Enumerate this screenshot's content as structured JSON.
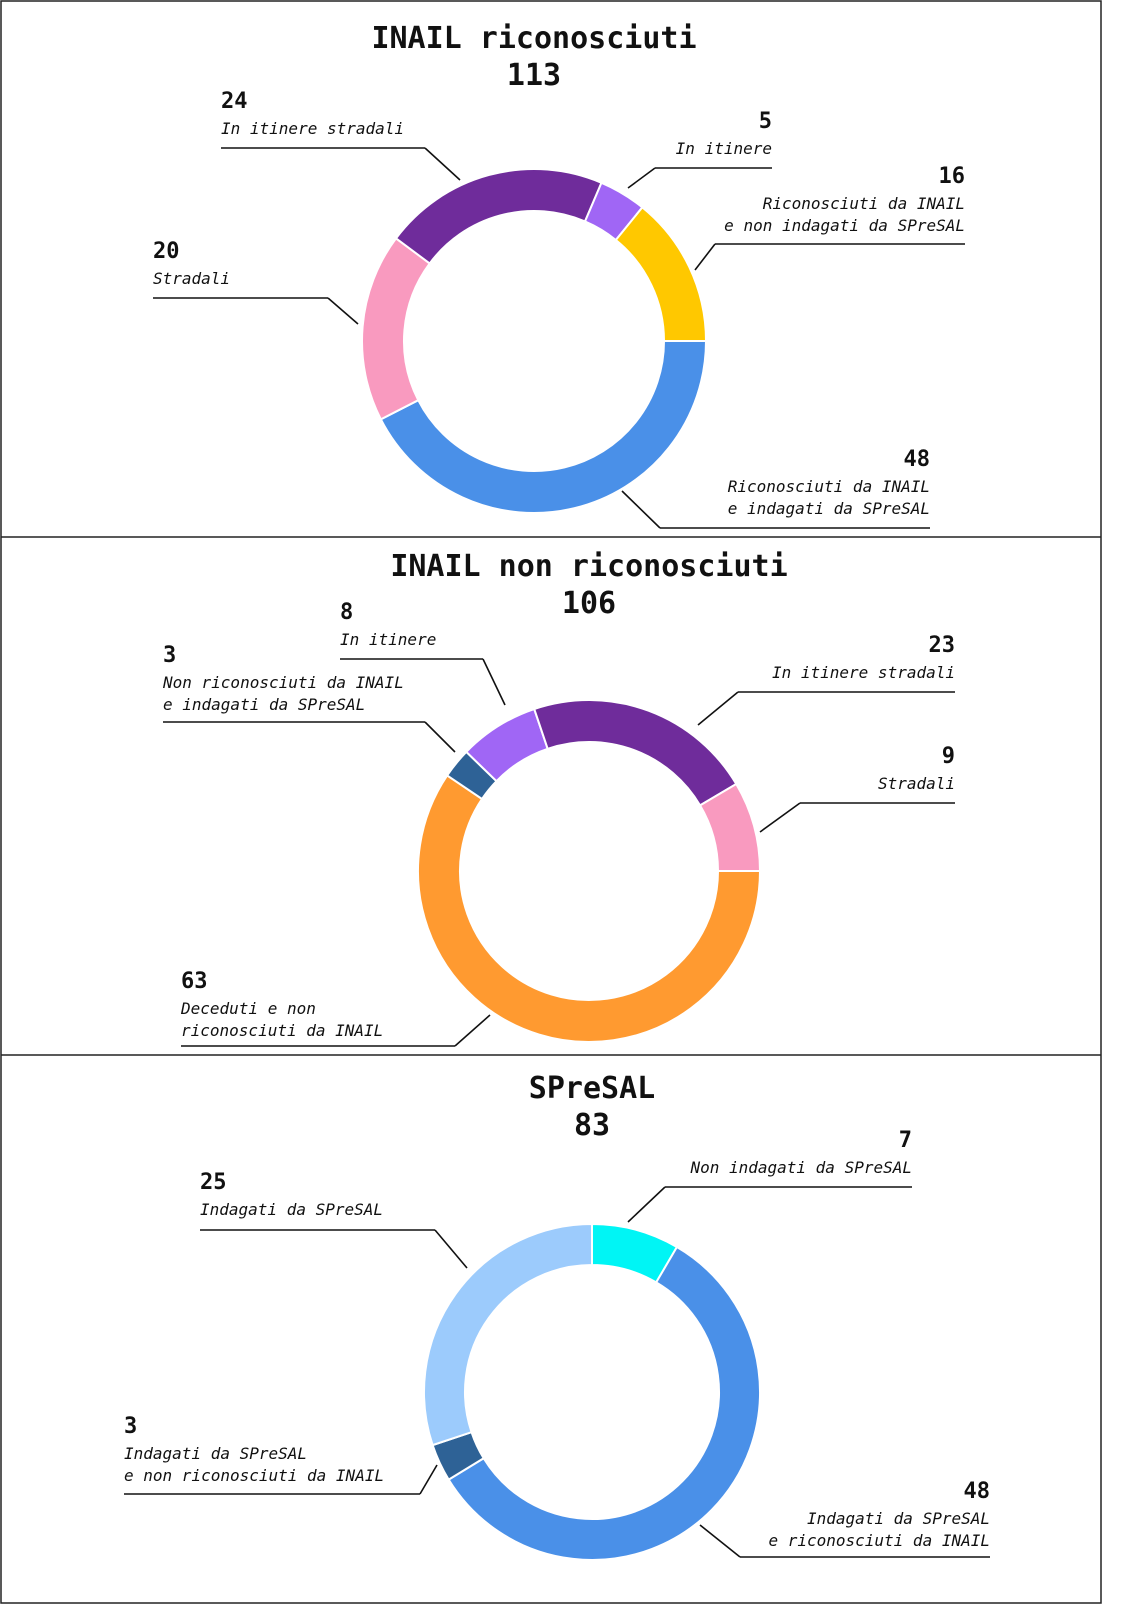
{
  "chart_data": [
    {
      "type": "donut",
      "title": "INAIL riconosciuti",
      "total": 113,
      "start_angle": 90,
      "categories": [
        [
          "Riconosciuti da INAIL",
          "e indagati da SPreSAL"
        ],
        [
          "Stradali"
        ],
        [
          "In itinere stradali"
        ],
        [
          "In itinere"
        ],
        [
          "Riconosciuti da INAIL",
          "e non indagati da SPreSAL"
        ]
      ],
      "values": [
        48,
        20,
        24,
        5,
        16
      ],
      "colors": [
        "#4a90e8",
        "#f99abf",
        "#6f2c9b",
        "#a066f5",
        "#ffc800"
      ]
    },
    {
      "type": "donut",
      "title": "INAIL non riconosciuti",
      "total": 106,
      "start_angle": 90,
      "categories": [
        [
          "Deceduti e non",
          "riconosciuti da INAIL"
        ],
        [
          "Non riconosciuti da INAIL",
          "e indagati da SPreSAL"
        ],
        [
          "In itinere"
        ],
        [
          "In itinere stradali"
        ],
        [
          "Stradali"
        ]
      ],
      "values": [
        63,
        3,
        8,
        23,
        9
      ],
      "colors": [
        "#ff9a30",
        "#2e6296",
        "#a066f5",
        "#6f2c9b",
        "#f99abf"
      ]
    },
    {
      "type": "donut",
      "title": "SPreSAL",
      "total": 83,
      "start_angle": 0,
      "categories": [
        [
          "Non indagati da SPreSAL"
        ],
        [
          "Indagati da SPreSAL",
          "e riconosciuti da INAIL"
        ],
        [
          "Indagati da SPreSAL",
          "e non riconosciuti da INAIL"
        ],
        [
          "Indagati da SPreSAL"
        ]
      ],
      "values": [
        7,
        48,
        3,
        25
      ],
      "colors": [
        "#00f5f5",
        "#4a90e8",
        "#2e6296",
        "#9ccbfc"
      ]
    }
  ]
}
